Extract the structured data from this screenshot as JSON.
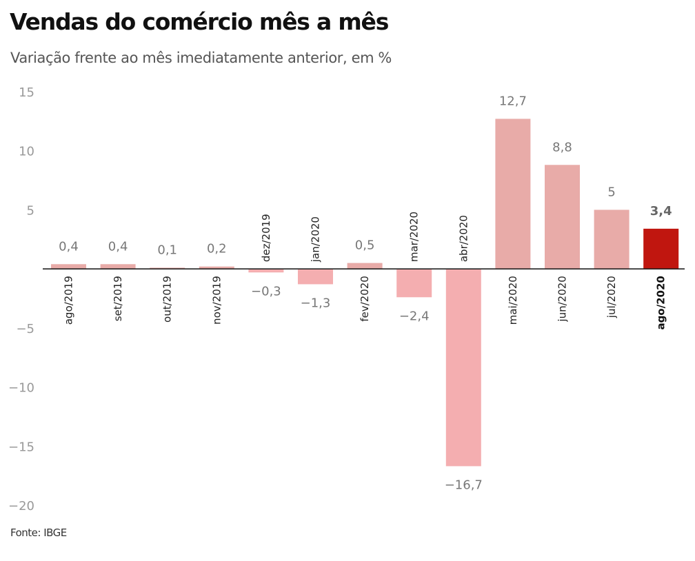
{
  "header": {
    "title": "Vendas do comércio mês a mês",
    "subtitle": "Variação frente ao mês imediatamente anterior, em %"
  },
  "footer": {
    "source": "Fonte: IBGE"
  },
  "colors": {
    "positive": "#E8ABA8",
    "negative": "#F4AEB0",
    "highlight": "#C0160F",
    "axis": "#222222"
  },
  "chart_data": {
    "type": "bar",
    "title": "Vendas do comércio mês a mês",
    "subtitle": "Variação frente ao mês imediatamente anterior, em %",
    "xlabel": "",
    "ylabel": "",
    "ylim": [
      -20,
      15
    ],
    "yticks": [
      15,
      10,
      5,
      -5,
      -10,
      -15,
      -20
    ],
    "ytick_labels": [
      "15",
      "10",
      "5",
      "−5",
      "−10",
      "−15",
      "−20"
    ],
    "grid": false,
    "legend": "none",
    "categories": [
      "ago/2019",
      "set/2019",
      "out/2019",
      "nov/2019",
      "dez/2019",
      "jan/2020",
      "fev/2020",
      "mar/2020",
      "abr/2020",
      "mai/2020",
      "jun/2020",
      "jul/2020",
      "ago/2020"
    ],
    "values": [
      0.4,
      0.4,
      0.1,
      0.2,
      -0.3,
      -1.3,
      0.5,
      -2.4,
      -16.7,
      12.7,
      8.8,
      5,
      3.4
    ],
    "value_labels": [
      "0,4",
      "0,4",
      "0,1",
      "0,2",
      "−0,3",
      "−1,3",
      "0,5",
      "−2,4",
      "−16,7",
      "12,7",
      "8,8",
      "5",
      "3,4"
    ],
    "highlight_index": 12,
    "source": "Fonte: IBGE"
  }
}
